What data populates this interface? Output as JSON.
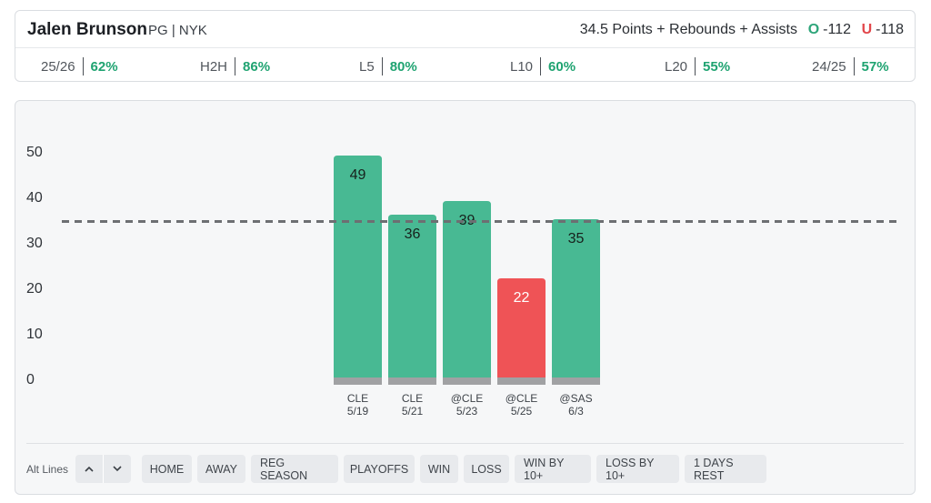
{
  "player": {
    "name": "Jalen Brunson",
    "meta": "PG | NYK"
  },
  "prop": {
    "line_text": "34.5 Points + Rebounds + Assists",
    "over_tag": "O",
    "over_odds": "-112",
    "under_tag": "U",
    "under_odds": "-118"
  },
  "stats": [
    {
      "label": "25/26",
      "pct": "62%"
    },
    {
      "label": "H2H",
      "pct": "86%"
    },
    {
      "label": "L5",
      "pct": "80%"
    },
    {
      "label": "L10",
      "pct": "60%"
    },
    {
      "label": "L20",
      "pct": "55%"
    },
    {
      "label": "24/25",
      "pct": "57%"
    }
  ],
  "colors": {
    "hit": "#48b993",
    "miss": "#ef5356",
    "base": "#a0a1a3",
    "pct_green": "#1fa371",
    "line": "#6d6f72"
  },
  "chart_data": {
    "type": "bar",
    "categories": [
      "CLE 5/19",
      "CLE 5/21",
      "@CLE 5/23",
      "@CLE 5/25",
      "@SAS 6/3"
    ],
    "opponents": [
      "CLE",
      "CLE",
      "@CLE",
      "@CLE",
      "@SAS"
    ],
    "dates": [
      "5/19",
      "5/21",
      "5/23",
      "5/25",
      "6/3"
    ],
    "values": [
      49,
      36,
      39,
      22,
      35
    ],
    "outcomes": [
      "hit",
      "hit",
      "hit",
      "miss",
      "hit"
    ],
    "line": 34.5,
    "ylim": [
      0,
      50
    ],
    "yticks": [
      "0",
      "10",
      "20",
      "30",
      "40",
      "50"
    ],
    "grid": false,
    "legend": "none"
  },
  "footer": {
    "alt_lines_label": "Alt Lines",
    "up_icon": "chevron-up-icon",
    "down_icon": "chevron-down-icon",
    "filters": [
      "HOME",
      "AWAY",
      "REG SEASON",
      "PLAYOFFS",
      "WIN",
      "LOSS",
      "WIN BY 10+",
      "LOSS BY 10+",
      "1 DAYS REST"
    ]
  }
}
